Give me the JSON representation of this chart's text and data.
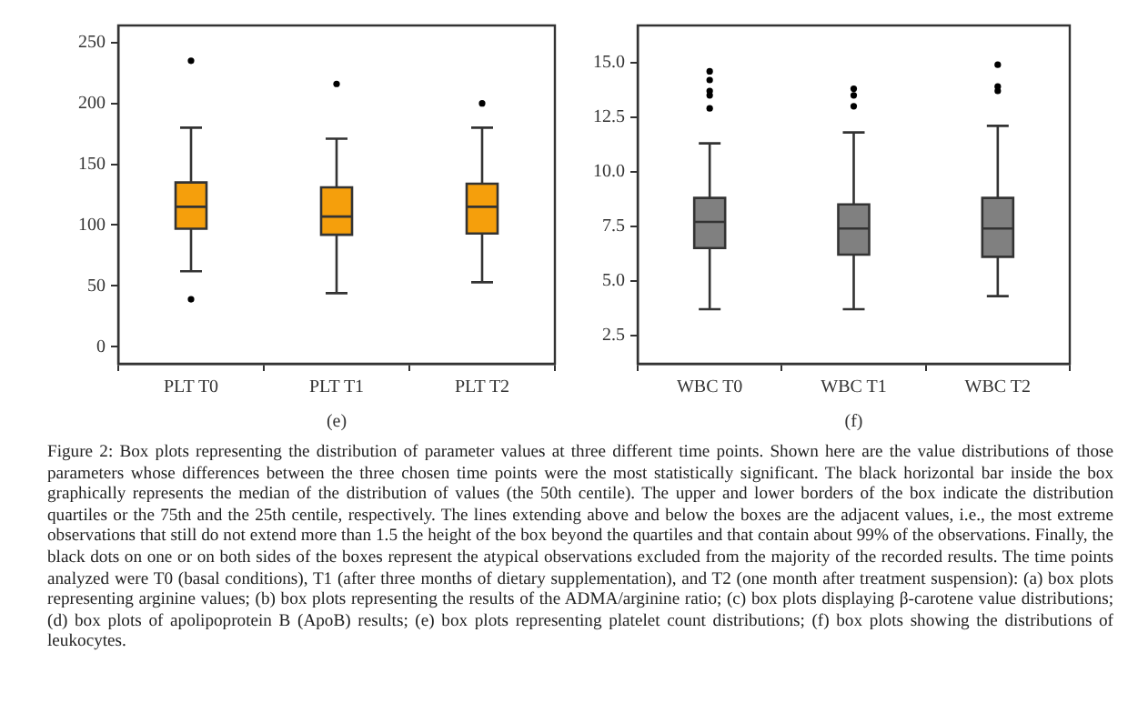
{
  "chart_data": [
    {
      "type": "box",
      "xlabel": "(e)",
      "categories": [
        "PLT T0",
        "PLT T1",
        "PLT T2"
      ],
      "color": "#f59f0c",
      "boxes": [
        {
          "low": 62,
          "q1": 97,
          "median": 115,
          "q3": 135,
          "high": 180,
          "outliers": [
            235,
            39
          ]
        },
        {
          "low": 44,
          "q1": 92,
          "median": 107,
          "q3": 131,
          "high": 171,
          "outliers": [
            216
          ]
        },
        {
          "low": 53,
          "q1": 93,
          "median": 115,
          "q3": 134,
          "high": 180,
          "outliers": [
            200
          ]
        }
      ],
      "ylim": [
        -14,
        264
      ],
      "yticks": [
        0,
        50,
        100,
        150,
        200,
        250
      ],
      "grid": false,
      "legend": false
    },
    {
      "type": "box",
      "xlabel": "(f)",
      "categories": [
        "WBC T0",
        "WBC T1",
        "WBC T2"
      ],
      "color": "#808080",
      "boxes": [
        {
          "low": 3.7,
          "q1": 6.5,
          "median": 7.7,
          "q3": 8.8,
          "high": 11.3,
          "outliers": [
            14.6,
            14.2,
            13.7,
            13.5,
            12.9
          ]
        },
        {
          "low": 3.7,
          "q1": 6.2,
          "median": 7.4,
          "q3": 8.5,
          "high": 11.8,
          "outliers": [
            13.8,
            13.5,
            13.0
          ]
        },
        {
          "low": 4.3,
          "q1": 6.1,
          "median": 7.4,
          "q3": 8.8,
          "high": 12.1,
          "outliers": [
            14.9,
            13.9,
            13.7
          ]
        }
      ],
      "ylim": [
        1.2,
        16.7
      ],
      "yticks": [
        {
          "value": 2.5,
          "label": "2.5"
        },
        {
          "value": 5,
          "label": "5.0"
        },
        {
          "value": 7.5,
          "label": "7.5"
        },
        {
          "value": 10,
          "label": "10.0"
        },
        {
          "value": 12.5,
          "label": "12.5"
        },
        {
          "value": 15,
          "label": "15.0"
        }
      ],
      "grid": false,
      "legend": false,
      "annotations": [
        "Figure 2: Box plots representing the distribution of parameter values at three different time points. Shown here are the value distributions of those parameters whose differences between the three chosen time points were the most statistically significant. The black horizontal bar inside the box graphically represents the median of the distribution of values (the 50th centile). The upper and lower borders of the box indicate the distribution quartiles or the 75th and the 25th centile, respectively. The lines extending above and below the boxes are the adjacent values, i.e., the most extreme observations that still do not extend more than 1.5 the height of the box beyond the quartiles and that contain about 99% of the observations. Finally, the black dots on one or on both sides of the boxes represent the atypical observations excluded from the majority of the recorded results. The time points analyzed were T0 (basal conditions), T1 (after three months of dietary supplementation), and T2 (one month after treatment suspension): (a) box plots representing arginine values; (b) box plots representing the results of the ADMA/arginine ratio; (c) box plots displaying β-carotene value distributions; (d) box plots of apolipoprotein B (ApoB) results; (e) box plots representing platelet count distributions; (f) box plots showing the distributions of leukocytes."
      ]
    }
  ]
}
